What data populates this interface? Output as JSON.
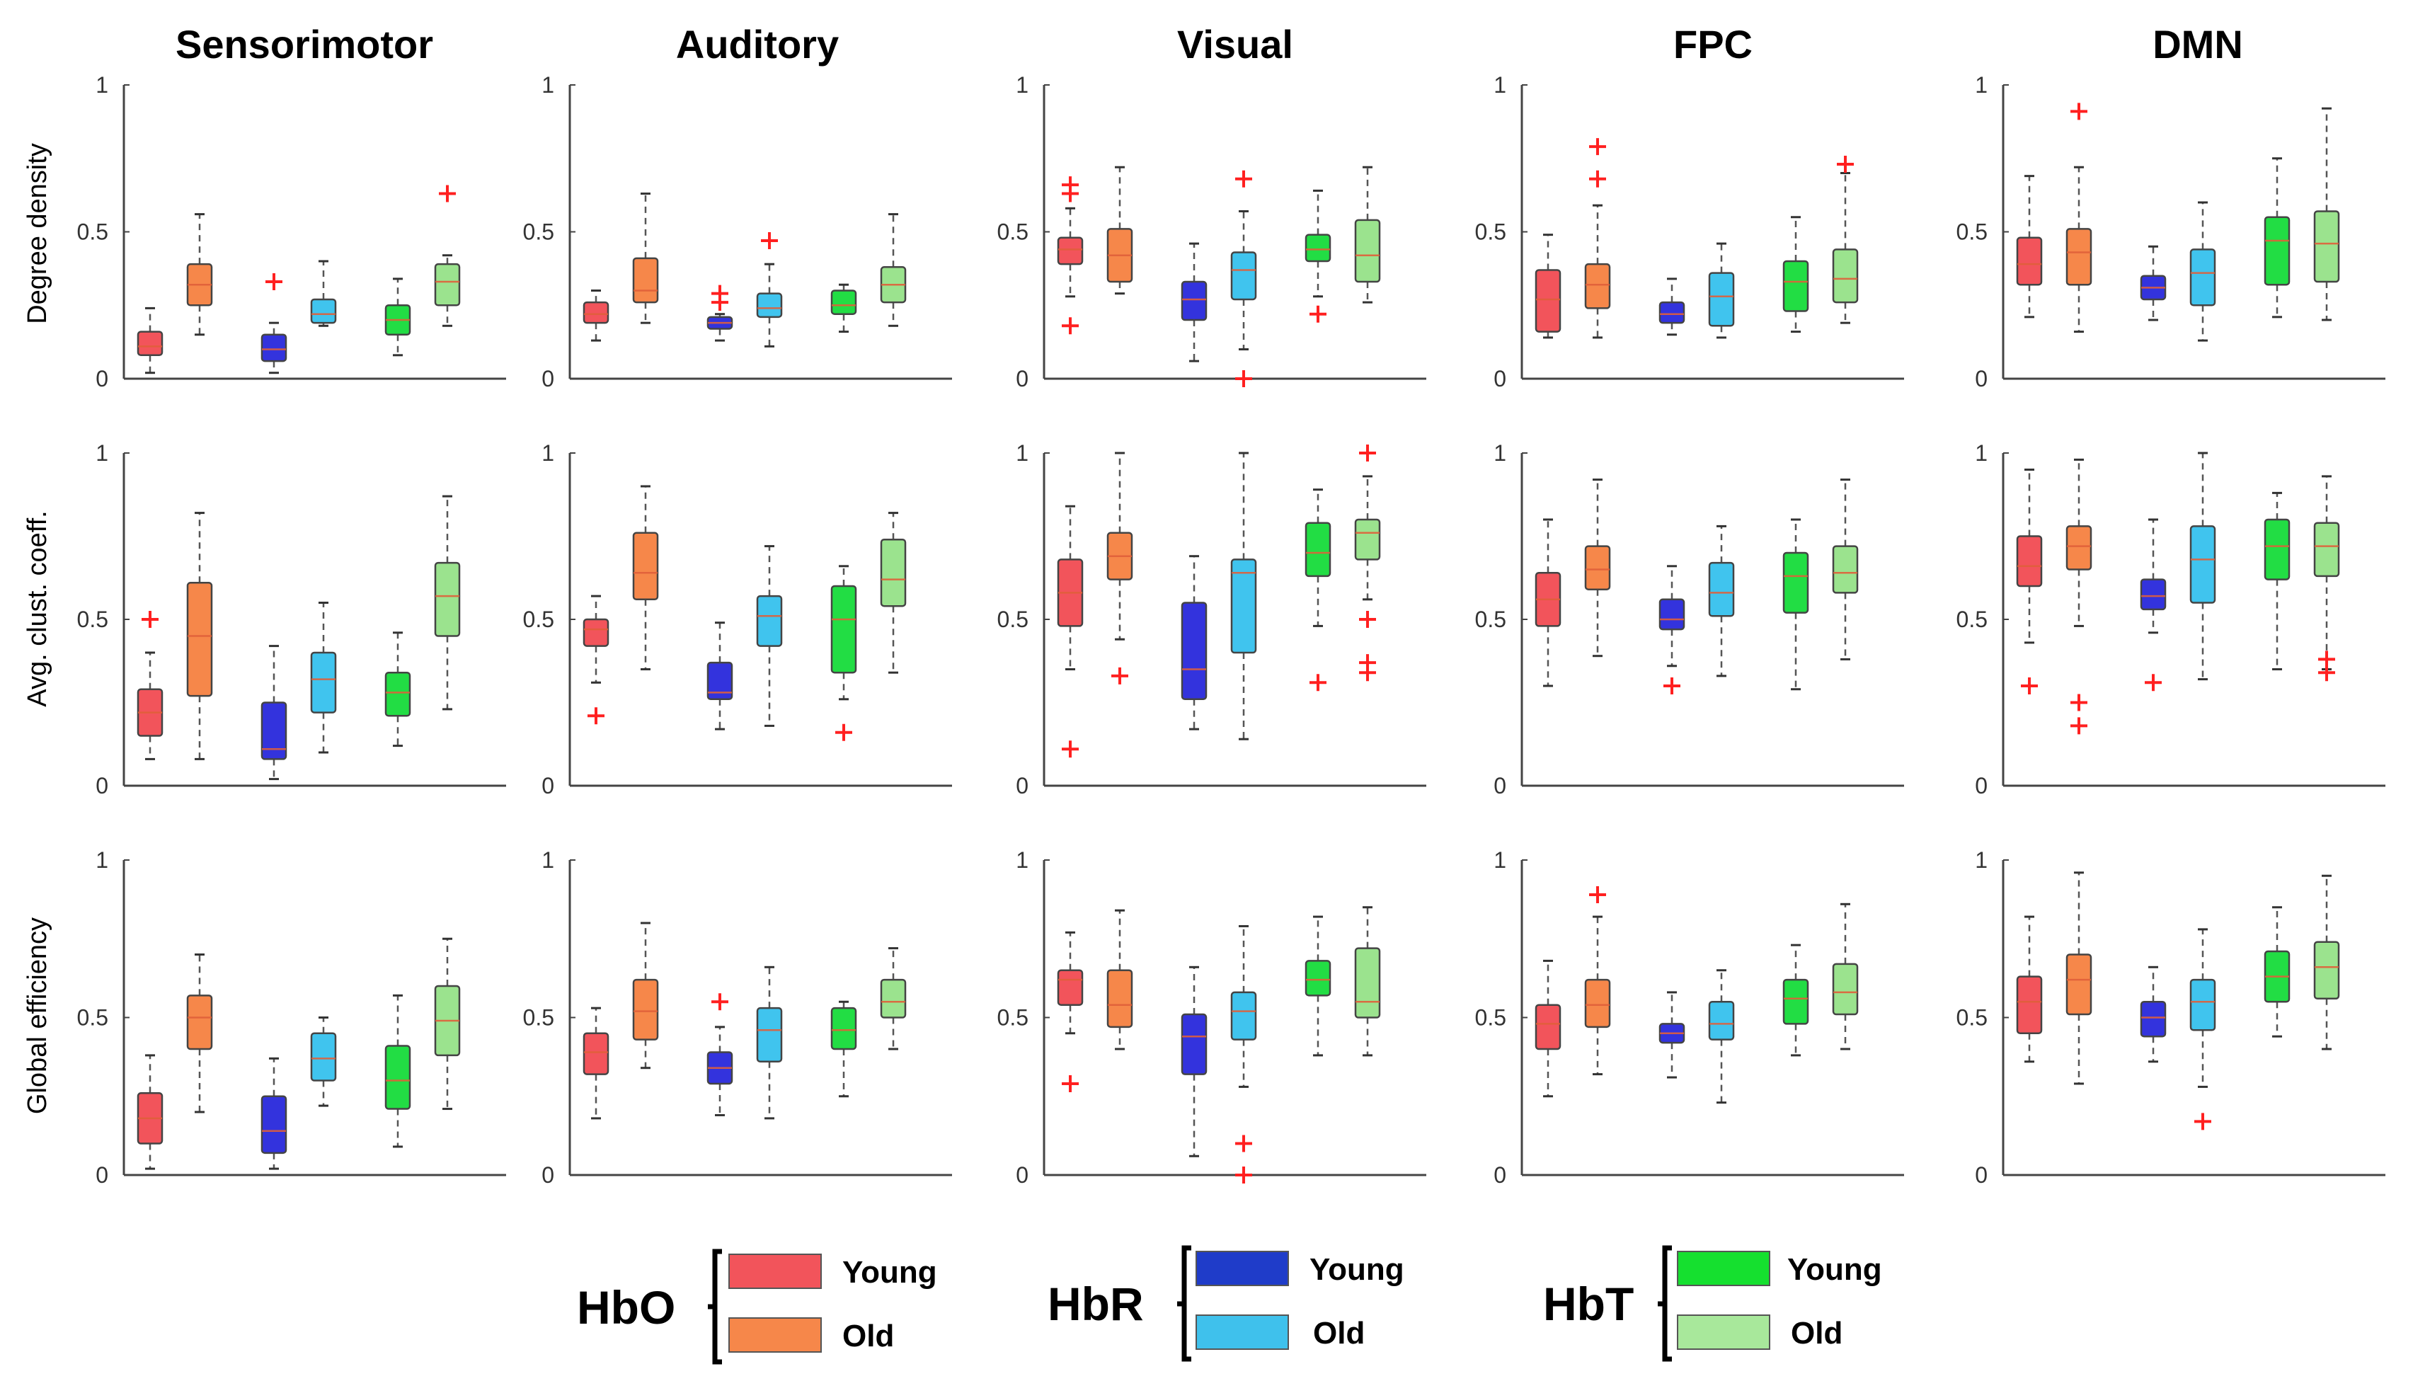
{
  "chart_data": {
    "type": "box",
    "columns": [
      "Sensorimotor",
      "Auditory",
      "Visual",
      "FPC",
      "DMN"
    ],
    "rows": [
      "Degree density",
      "Avg. clust. coeff.",
      "Global efficiency"
    ],
    "ylim": [
      0,
      1
    ],
    "yticks": [
      "0",
      "0.5",
      "1"
    ],
    "series_order": [
      "HbO-Young",
      "HbO-Old",
      "HbR-Young",
      "HbR-Old",
      "HbT-Young",
      "HbT-Old"
    ],
    "series_colors": {
      "HbO-Young": "#f2545b",
      "HbO-Old": "#f6874a",
      "HbR-Young": "#3333dd",
      "HbR-Old": "#40c4ee",
      "HbT-Young": "#22dd44",
      "HbT-Old": "#9be38e"
    },
    "legend": [
      {
        "group": "HbO",
        "entries": [
          {
            "label": "Young",
            "color": "#f2545b"
          },
          {
            "label": "Old",
            "color": "#f6874a"
          }
        ]
      },
      {
        "group": "HbR",
        "entries": [
          {
            "label": "Young",
            "color": "#1f3cc9"
          },
          {
            "label": "Old",
            "color": "#3fc1ec"
          }
        ]
      },
      {
        "group": "HbT",
        "entries": [
          {
            "label": "Young",
            "color": "#15e02f"
          },
          {
            "label": "Old",
            "color": "#a8e89b"
          }
        ]
      }
    ],
    "panels": [
      [
        [
          [
            0.02,
            0.08,
            0.11,
            0.16,
            0.24,
            []
          ],
          [
            0.15,
            0.25,
            0.32,
            0.39,
            0.56,
            []
          ],
          [
            0.02,
            0.06,
            0.1,
            0.15,
            0.19,
            [
              0.33
            ]
          ],
          [
            0.18,
            0.19,
            0.22,
            0.27,
            0.4,
            []
          ],
          [
            0.08,
            0.15,
            0.2,
            0.25,
            0.34,
            []
          ],
          [
            0.18,
            0.25,
            0.33,
            0.39,
            0.42,
            [
              0.63
            ]
          ]
        ],
        [
          [
            0.13,
            0.19,
            0.22,
            0.26,
            0.3,
            []
          ],
          [
            0.19,
            0.26,
            0.3,
            0.41,
            0.63,
            []
          ],
          [
            0.13,
            0.17,
            0.19,
            0.21,
            0.22,
            [
              0.26,
              0.29
            ]
          ],
          [
            0.11,
            0.21,
            0.24,
            0.29,
            0.39,
            [
              0.47
            ]
          ],
          [
            0.16,
            0.22,
            0.25,
            0.3,
            0.32,
            []
          ],
          [
            0.18,
            0.26,
            0.32,
            0.38,
            0.56,
            []
          ]
        ],
        [
          [
            0.28,
            0.39,
            0.44,
            0.48,
            0.58,
            [
              0.18,
              0.63,
              0.66
            ]
          ],
          [
            0.29,
            0.33,
            0.42,
            0.51,
            0.72,
            []
          ],
          [
            0.06,
            0.2,
            0.27,
            0.33,
            0.46,
            []
          ],
          [
            0.1,
            0.27,
            0.37,
            0.43,
            0.57,
            [
              0.0,
              0.68
            ]
          ],
          [
            0.28,
            0.4,
            0.44,
            0.49,
            0.64,
            [
              0.22
            ]
          ],
          [
            0.26,
            0.33,
            0.42,
            0.54,
            0.72,
            []
          ]
        ],
        [
          [
            0.14,
            0.16,
            0.27,
            0.37,
            0.49,
            []
          ],
          [
            0.14,
            0.24,
            0.32,
            0.39,
            0.59,
            [
              0.68,
              0.79
            ]
          ],
          [
            0.15,
            0.19,
            0.22,
            0.26,
            0.34,
            []
          ],
          [
            0.14,
            0.18,
            0.28,
            0.36,
            0.46,
            []
          ],
          [
            0.16,
            0.23,
            0.33,
            0.4,
            0.55,
            []
          ],
          [
            0.19,
            0.26,
            0.34,
            0.44,
            0.7,
            [
              0.73
            ]
          ]
        ],
        [
          [
            0.21,
            0.32,
            0.39,
            0.48,
            0.69,
            []
          ],
          [
            0.16,
            0.32,
            0.43,
            0.51,
            0.72,
            [
              0.91
            ]
          ],
          [
            0.2,
            0.27,
            0.31,
            0.35,
            0.45,
            []
          ],
          [
            0.13,
            0.25,
            0.36,
            0.44,
            0.6,
            []
          ],
          [
            0.21,
            0.32,
            0.47,
            0.55,
            0.75,
            []
          ],
          [
            0.2,
            0.33,
            0.46,
            0.57,
            0.92,
            []
          ]
        ]
      ],
      [
        [
          [
            0.08,
            0.15,
            0.22,
            0.29,
            0.4,
            [
              0.5
            ]
          ],
          [
            0.08,
            0.27,
            0.45,
            0.61,
            0.82,
            []
          ],
          [
            0.02,
            0.08,
            0.11,
            0.25,
            0.42,
            []
          ],
          [
            0.1,
            0.22,
            0.32,
            0.4,
            0.55,
            []
          ],
          [
            0.12,
            0.21,
            0.28,
            0.34,
            0.46,
            []
          ],
          [
            0.23,
            0.45,
            0.57,
            0.67,
            0.87,
            []
          ]
        ],
        [
          [
            0.31,
            0.42,
            0.47,
            0.5,
            0.57,
            [
              0.21
            ]
          ],
          [
            0.35,
            0.56,
            0.64,
            0.76,
            0.9,
            []
          ],
          [
            0.17,
            0.26,
            0.28,
            0.37,
            0.49,
            []
          ],
          [
            0.18,
            0.42,
            0.51,
            0.57,
            0.72,
            []
          ],
          [
            0.26,
            0.34,
            0.5,
            0.6,
            0.66,
            [
              0.16
            ]
          ],
          [
            0.34,
            0.54,
            0.62,
            0.74,
            0.82,
            []
          ]
        ],
        [
          [
            0.35,
            0.48,
            0.58,
            0.68,
            0.84,
            [
              0.11
            ]
          ],
          [
            0.44,
            0.62,
            0.69,
            0.76,
            1.0,
            [
              0.33
            ]
          ],
          [
            0.17,
            0.26,
            0.35,
            0.55,
            0.69,
            []
          ],
          [
            0.14,
            0.4,
            0.64,
            0.68,
            1.0,
            []
          ],
          [
            0.48,
            0.63,
            0.7,
            0.79,
            0.89,
            [
              0.31
            ]
          ],
          [
            0.56,
            0.68,
            0.76,
            0.8,
            0.93,
            [
              0.34,
              0.37,
              0.5,
              1.0
            ]
          ]
        ],
        [
          [
            0.3,
            0.48,
            0.56,
            0.64,
            0.8,
            []
          ],
          [
            0.39,
            0.59,
            0.65,
            0.72,
            0.92,
            []
          ],
          [
            0.36,
            0.47,
            0.5,
            0.56,
            0.66,
            [
              0.3
            ]
          ],
          [
            0.33,
            0.51,
            0.58,
            0.67,
            0.78,
            []
          ],
          [
            0.29,
            0.52,
            0.63,
            0.7,
            0.8,
            []
          ],
          [
            0.38,
            0.58,
            0.64,
            0.72,
            0.92,
            []
          ]
        ],
        [
          [
            0.43,
            0.6,
            0.66,
            0.75,
            0.95,
            [
              0.3
            ]
          ],
          [
            0.48,
            0.65,
            0.72,
            0.78,
            0.98,
            [
              0.18,
              0.25
            ]
          ],
          [
            0.46,
            0.53,
            0.57,
            0.62,
            0.8,
            [
              0.31
            ]
          ],
          [
            0.32,
            0.55,
            0.68,
            0.78,
            1.0,
            []
          ],
          [
            0.35,
            0.62,
            0.72,
            0.8,
            0.88,
            []
          ],
          [
            0.35,
            0.63,
            0.72,
            0.79,
            0.93,
            [
              0.34,
              0.38
            ]
          ]
        ]
      ],
      [
        [
          [
            0.02,
            0.1,
            0.18,
            0.26,
            0.38,
            []
          ],
          [
            0.2,
            0.4,
            0.5,
            0.57,
            0.7,
            []
          ],
          [
            0.02,
            0.07,
            0.14,
            0.25,
            0.37,
            []
          ],
          [
            0.22,
            0.3,
            0.37,
            0.45,
            0.5,
            []
          ],
          [
            0.09,
            0.21,
            0.3,
            0.41,
            0.57,
            []
          ],
          [
            0.21,
            0.38,
            0.49,
            0.6,
            0.75,
            []
          ]
        ],
        [
          [
            0.18,
            0.32,
            0.39,
            0.45,
            0.53,
            []
          ],
          [
            0.34,
            0.43,
            0.52,
            0.62,
            0.8,
            []
          ],
          [
            0.19,
            0.29,
            0.34,
            0.39,
            0.47,
            [
              0.55
            ]
          ],
          [
            0.18,
            0.36,
            0.46,
            0.53,
            0.66,
            []
          ],
          [
            0.25,
            0.4,
            0.46,
            0.53,
            0.55,
            []
          ],
          [
            0.4,
            0.5,
            0.55,
            0.62,
            0.72,
            []
          ]
        ],
        [
          [
            0.45,
            0.54,
            0.62,
            0.65,
            0.77,
            [
              0.29
            ]
          ],
          [
            0.4,
            0.47,
            0.54,
            0.65,
            0.84,
            []
          ],
          [
            0.06,
            0.32,
            0.44,
            0.51,
            0.66,
            []
          ],
          [
            0.28,
            0.43,
            0.52,
            0.58,
            0.79,
            [
              0.0,
              0.1
            ]
          ],
          [
            0.38,
            0.57,
            0.62,
            0.68,
            0.82,
            []
          ],
          [
            0.38,
            0.5,
            0.55,
            0.72,
            0.85,
            []
          ]
        ],
        [
          [
            0.25,
            0.4,
            0.48,
            0.54,
            0.68,
            []
          ],
          [
            0.32,
            0.47,
            0.54,
            0.62,
            0.82,
            [
              0.89
            ]
          ],
          [
            0.31,
            0.42,
            0.45,
            0.48,
            0.58,
            []
          ],
          [
            0.23,
            0.43,
            0.48,
            0.55,
            0.65,
            []
          ],
          [
            0.38,
            0.48,
            0.56,
            0.62,
            0.73,
            []
          ],
          [
            0.4,
            0.51,
            0.58,
            0.67,
            0.86,
            []
          ]
        ],
        [
          [
            0.36,
            0.45,
            0.55,
            0.63,
            0.82,
            []
          ],
          [
            0.29,
            0.51,
            0.62,
            0.7,
            0.96,
            []
          ],
          [
            0.36,
            0.44,
            0.5,
            0.55,
            0.66,
            []
          ],
          [
            0.28,
            0.46,
            0.55,
            0.62,
            0.78,
            [
              0.17
            ]
          ],
          [
            0.44,
            0.55,
            0.63,
            0.71,
            0.85,
            []
          ],
          [
            0.4,
            0.56,
            0.66,
            0.74,
            0.95,
            []
          ]
        ]
      ]
    ]
  }
}
